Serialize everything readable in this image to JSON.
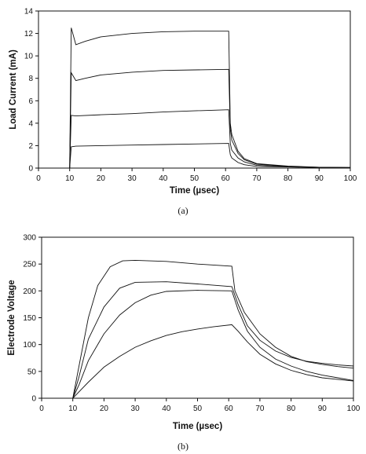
{
  "chart_data": [
    {
      "type": "line",
      "caption": "(a)",
      "xlabel": "Time (µsec)",
      "ylabel": "Load Current (mA)",
      "xlim": [
        0,
        100
      ],
      "ylim": [
        0,
        14
      ],
      "xticks": [
        0,
        10,
        20,
        30,
        40,
        50,
        60,
        70,
        80,
        90,
        100
      ],
      "yticks": [
        0,
        2,
        4,
        6,
        8,
        10,
        12,
        14
      ],
      "grid": false,
      "series": [
        {
          "values": [
            [
              10,
              0
            ],
            [
              10.5,
              1.9
            ],
            [
              12,
              1.95
            ],
            [
              20,
              2.0
            ],
            [
              30,
              2.05
            ],
            [
              40,
              2.1
            ],
            [
              50,
              2.15
            ],
            [
              61,
              2.2
            ],
            [
              61.5,
              1.2
            ],
            [
              62,
              0.9
            ],
            [
              64,
              0.5
            ],
            [
              66,
              0.3
            ],
            [
              70,
              0.15
            ],
            [
              80,
              0.1
            ],
            [
              90,
              0.05
            ],
            [
              100,
              0.05
            ]
          ]
        },
        {
          "values": [
            [
              10,
              0
            ],
            [
              10.5,
              4.7
            ],
            [
              12,
              4.65
            ],
            [
              20,
              4.75
            ],
            [
              30,
              4.85
            ],
            [
              40,
              5.0
            ],
            [
              50,
              5.1
            ],
            [
              61,
              5.2
            ],
            [
              61.5,
              2.2
            ],
            [
              62,
              1.6
            ],
            [
              64,
              0.9
            ],
            [
              66,
              0.55
            ],
            [
              70,
              0.25
            ],
            [
              80,
              0.12
            ],
            [
              90,
              0.07
            ],
            [
              100,
              0.05
            ]
          ]
        },
        {
          "values": [
            [
              10,
              0
            ],
            [
              10.5,
              8.5
            ],
            [
              12,
              7.8
            ],
            [
              15,
              8.0
            ],
            [
              20,
              8.3
            ],
            [
              30,
              8.55
            ],
            [
              40,
              8.7
            ],
            [
              50,
              8.75
            ],
            [
              61,
              8.8
            ],
            [
              61.5,
              3.5
            ],
            [
              62,
              2.5
            ],
            [
              64,
              1.3
            ],
            [
              66,
              0.75
            ],
            [
              70,
              0.35
            ],
            [
              80,
              0.15
            ],
            [
              90,
              0.08
            ],
            [
              100,
              0.05
            ]
          ]
        },
        {
          "values": [
            [
              10,
              0
            ],
            [
              10.5,
              12.5
            ],
            [
              12,
              11.0
            ],
            [
              15,
              11.3
            ],
            [
              20,
              11.7
            ],
            [
              30,
              12.0
            ],
            [
              40,
              12.15
            ],
            [
              50,
              12.2
            ],
            [
              61,
              12.2
            ],
            [
              61.5,
              4.0
            ],
            [
              62,
              3.0
            ],
            [
              64,
              1.5
            ],
            [
              66,
              0.85
            ],
            [
              70,
              0.4
            ],
            [
              80,
              0.18
            ],
            [
              90,
              0.08
            ],
            [
              100,
              0.05
            ]
          ]
        }
      ]
    },
    {
      "type": "line",
      "caption": "(b)",
      "xlabel": "Time (µsec)",
      "ylabel": "Electrode Voltage",
      "xlim": [
        0,
        100
      ],
      "ylim": [
        0,
        300
      ],
      "xticks": [
        0,
        10,
        20,
        30,
        40,
        50,
        60,
        70,
        80,
        90,
        100
      ],
      "yticks": [
        0,
        50,
        100,
        150,
        200,
        250,
        300
      ],
      "grid": false,
      "series": [
        {
          "values": [
            [
              0,
              0
            ],
            [
              10,
              0
            ],
            [
              12,
              60
            ],
            [
              15,
              150
            ],
            [
              18,
              210
            ],
            [
              22,
              245
            ],
            [
              26,
              256
            ],
            [
              30,
              257
            ],
            [
              40,
              255
            ],
            [
              50,
              250
            ],
            [
              61,
              246
            ],
            [
              62,
              200
            ],
            [
              65,
              160
            ],
            [
              70,
              120
            ],
            [
              75,
              95
            ],
            [
              80,
              78
            ],
            [
              85,
              68
            ],
            [
              90,
              63
            ],
            [
              95,
              59
            ],
            [
              100,
              56
            ]
          ]
        },
        {
          "values": [
            [
              0,
              0
            ],
            [
              10,
              0
            ],
            [
              12,
              40
            ],
            [
              15,
              110
            ],
            [
              20,
              170
            ],
            [
              25,
              205
            ],
            [
              30,
              216
            ],
            [
              40,
              217
            ],
            [
              50,
              213
            ],
            [
              61,
              208
            ],
            [
              63,
              175
            ],
            [
              66,
              135
            ],
            [
              70,
              108
            ],
            [
              75,
              88
            ],
            [
              80,
              76
            ],
            [
              85,
              69
            ],
            [
              90,
              65
            ],
            [
              95,
              62
            ],
            [
              100,
              60
            ]
          ]
        },
        {
          "values": [
            [
              0,
              0
            ],
            [
              10,
              0
            ],
            [
              12,
              25
            ],
            [
              15,
              70
            ],
            [
              20,
              120
            ],
            [
              25,
              155
            ],
            [
              30,
              178
            ],
            [
              35,
              192
            ],
            [
              40,
              199
            ],
            [
              50,
              201
            ],
            [
              61,
              200
            ],
            [
              63,
              165
            ],
            [
              66,
              125
            ],
            [
              70,
              95
            ],
            [
              75,
              73
            ],
            [
              80,
              60
            ],
            [
              85,
              50
            ],
            [
              90,
              43
            ],
            [
              95,
              38
            ],
            [
              100,
              33
            ]
          ]
        },
        {
          "values": [
            [
              0,
              0
            ],
            [
              10,
              0
            ],
            [
              12,
              12
            ],
            [
              15,
              30
            ],
            [
              20,
              58
            ],
            [
              25,
              78
            ],
            [
              30,
              95
            ],
            [
              35,
              107
            ],
            [
              40,
              117
            ],
            [
              45,
              124
            ],
            [
              50,
              129
            ],
            [
              55,
              133
            ],
            [
              61,
              137
            ],
            [
              63,
              125
            ],
            [
              66,
              105
            ],
            [
              70,
              82
            ],
            [
              75,
              64
            ],
            [
              80,
              52
            ],
            [
              85,
              44
            ],
            [
              90,
              38
            ],
            [
              95,
              35
            ],
            [
              100,
              32
            ]
          ]
        }
      ]
    }
  ]
}
